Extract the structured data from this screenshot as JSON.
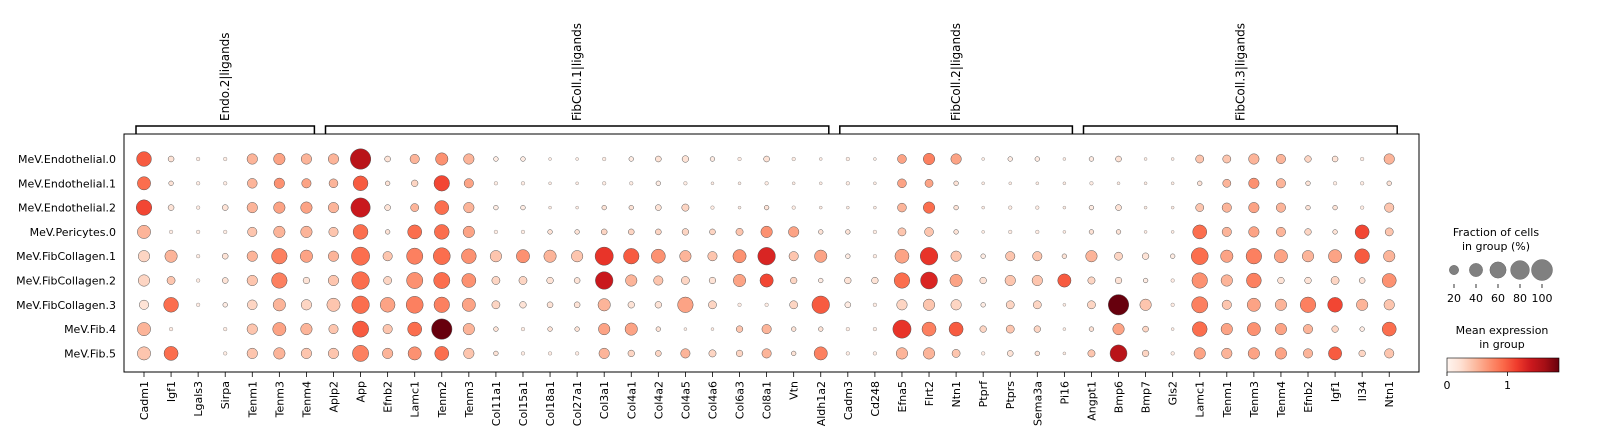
{
  "chart_data": {
    "type": "dotplot",
    "groups": [
      {
        "label": "Endo.2|ligands",
        "start": 0,
        "end": 6
      },
      {
        "label": "FibColl.1|ligands",
        "start": 7,
        "end": 25
      },
      {
        "label": "FibColl.2|ligands",
        "start": 26,
        "end": 34
      },
      {
        "label": "FibColl.3|ligands",
        "start": 35,
        "end": 46
      }
    ],
    "genes": [
      "Cadm1",
      "Igf1",
      "Lgals3",
      "Sirpa",
      "Tenm1",
      "Tenm3",
      "Tenm4",
      "Aplp2",
      "App",
      "Efnb2",
      "Lamc1",
      "Tenm2",
      "Tenm3",
      "Col11a1",
      "Col15a1",
      "Col18a1",
      "Col27a1",
      "Col3a1",
      "Col4a1",
      "Col4a2",
      "Col4a5",
      "Col4a6",
      "Col6a3",
      "Col8a1",
      "Vtn",
      "Aldh1a2",
      "Cadm3",
      "Cd248",
      "Efna5",
      "Flrt2",
      "Ntn1",
      "Ptprf",
      "Ptprs",
      "Sema3a",
      "Pi16",
      "Angpt1",
      "Bmp6",
      "Bmp7",
      "Gls2",
      "Lamc1",
      "Tenm1",
      "Tenm3",
      "Tenm4",
      "Efnb2",
      "Igf1",
      "Il34",
      "Ntn1"
    ],
    "rows": [
      "MeV.Endothelial.0",
      "MeV.Endothelial.1",
      "MeV.Endothelial.2",
      "MeV.Pericytes.0",
      "MeV.FibCollagen.1",
      "MeV.FibCollagen.2",
      "MeV.FibCollagen.3",
      "MeV.Fib.4",
      "MeV.Fib.5"
    ],
    "fraction_pct": [
      [
        50,
        8,
        3,
        3,
        25,
        30,
        25,
        25,
        95,
        8,
        20,
        35,
        25,
        5,
        5,
        2,
        2,
        3,
        5,
        8,
        10,
        5,
        3,
        8,
        3,
        2,
        3,
        2,
        18,
        30,
        25,
        2,
        5,
        5,
        2,
        5,
        8,
        2,
        2,
        15,
        15,
        25,
        20,
        10,
        8,
        3,
        25
      ],
      [
        40,
        5,
        3,
        3,
        22,
        25,
        20,
        18,
        50,
        5,
        10,
        55,
        20,
        3,
        3,
        2,
        2,
        3,
        3,
        5,
        3,
        2,
        2,
        3,
        2,
        2,
        3,
        2,
        18,
        15,
        5,
        2,
        2,
        2,
        2,
        3,
        2,
        2,
        2,
        5,
        15,
        25,
        20,
        5,
        3,
        3,
        5
      ],
      [
        55,
        8,
        3,
        8,
        25,
        30,
        30,
        25,
        85,
        8,
        15,
        45,
        25,
        5,
        5,
        2,
        2,
        5,
        5,
        8,
        12,
        3,
        2,
        5,
        3,
        2,
        2,
        2,
        18,
        30,
        5,
        2,
        3,
        3,
        2,
        5,
        8,
        2,
        2,
        15,
        20,
        25,
        20,
        5,
        5,
        3,
        20
      ],
      [
        40,
        3,
        3,
        3,
        20,
        30,
        30,
        20,
        50,
        5,
        45,
        50,
        30,
        3,
        3,
        5,
        5,
        8,
        8,
        8,
        10,
        8,
        12,
        30,
        25,
        5,
        5,
        3,
        15,
        18,
        5,
        2,
        3,
        3,
        2,
        5,
        5,
        2,
        2,
        45,
        20,
        25,
        20,
        10,
        5,
        45,
        15
      ],
      [
        30,
        35,
        3,
        8,
        25,
        55,
        35,
        25,
        75,
        20,
        60,
        65,
        50,
        30,
        40,
        35,
        30,
        75,
        55,
        45,
        30,
        20,
        40,
        70,
        20,
        35,
        5,
        3,
        45,
        70,
        25,
        5,
        20,
        20,
        5,
        30,
        15,
        10,
        5,
        65,
        35,
        55,
        40,
        30,
        40,
        50,
        30
      ],
      [
        30,
        15,
        3,
        8,
        25,
        55,
        10,
        25,
        70,
        15,
        60,
        60,
        45,
        15,
        15,
        10,
        8,
        70,
        30,
        20,
        15,
        10,
        35,
        40,
        10,
        5,
        10,
        10,
        55,
        65,
        35,
        10,
        25,
        25,
        40,
        12,
        10,
        5,
        3,
        55,
        30,
        50,
        10,
        10,
        15,
        8,
        45
      ],
      [
        20,
        50,
        3,
        5,
        22,
        35,
        25,
        40,
        70,
        50,
        65,
        55,
        40,
        15,
        10,
        8,
        8,
        35,
        10,
        10,
        55,
        15,
        3,
        3,
        15,
        70,
        8,
        3,
        25,
        30,
        25,
        5,
        15,
        15,
        2,
        15,
        95,
        30,
        3,
        60,
        20,
        40,
        30,
        55,
        50,
        30,
        25
      ],
      [
        40,
        3,
        0,
        3,
        25,
        40,
        30,
        20,
        60,
        20,
        45,
        95,
        30,
        5,
        3,
        5,
        5,
        30,
        35,
        5,
        2,
        2,
        10,
        20,
        5,
        5,
        3,
        3,
        75,
        45,
        45,
        10,
        15,
        10,
        2,
        5,
        30,
        8,
        2,
        50,
        30,
        40,
        30,
        20,
        10,
        5,
        45
      ],
      [
        40,
        45,
        0,
        3,
        25,
        30,
        25,
        25,
        60,
        25,
        40,
        45,
        25,
        5,
        3,
        3,
        3,
        25,
        10,
        8,
        20,
        12,
        10,
        20,
        5,
        40,
        3,
        3,
        30,
        30,
        15,
        3,
        8,
        5,
        2,
        12,
        65,
        10,
        3,
        30,
        25,
        30,
        30,
        20,
        40,
        10,
        20
      ]
    ],
    "mean_expression": [
      [
        1.0,
        0.2,
        0.1,
        0.1,
        0.5,
        0.6,
        0.5,
        0.5,
        1.5,
        0.2,
        0.5,
        0.7,
        0.5,
        0.1,
        0.1,
        0.1,
        0.1,
        0.1,
        0.1,
        0.2,
        0.2,
        0.1,
        0.1,
        0.2,
        0.1,
        0.1,
        0.1,
        0.1,
        0.6,
        0.8,
        0.6,
        0.1,
        0.1,
        0.1,
        0.1,
        0.1,
        0.2,
        0.1,
        0.1,
        0.4,
        0.4,
        0.5,
        0.5,
        0.3,
        0.2,
        0.1,
        0.5
      ],
      [
        0.9,
        0.2,
        0.1,
        0.1,
        0.5,
        0.7,
        0.6,
        0.5,
        1.0,
        0.2,
        0.3,
        1.1,
        0.6,
        0.1,
        0.1,
        0.1,
        0.1,
        0.1,
        0.1,
        0.1,
        0.1,
        0.1,
        0.1,
        0.1,
        0.1,
        0.1,
        0.1,
        0.1,
        0.6,
        0.6,
        0.2,
        0.1,
        0.1,
        0.1,
        0.1,
        0.1,
        0.1,
        0.1,
        0.1,
        0.2,
        0.5,
        0.7,
        0.5,
        0.2,
        0.1,
        0.1,
        0.2
      ],
      [
        1.1,
        0.2,
        0.1,
        0.2,
        0.5,
        0.6,
        0.6,
        0.5,
        1.4,
        0.2,
        0.5,
        0.9,
        0.5,
        0.1,
        0.1,
        0.1,
        0.1,
        0.2,
        0.2,
        0.2,
        0.3,
        0.1,
        0.1,
        0.2,
        0.1,
        0.1,
        0.1,
        0.1,
        0.5,
        0.9,
        0.2,
        0.1,
        0.1,
        0.1,
        0.1,
        0.1,
        0.2,
        0.1,
        0.1,
        0.4,
        0.5,
        0.6,
        0.5,
        0.2,
        0.2,
        0.1,
        0.4
      ],
      [
        0.5,
        0.1,
        0.1,
        0.1,
        0.4,
        0.5,
        0.5,
        0.4,
        0.9,
        0.2,
        0.9,
        0.9,
        0.6,
        0.1,
        0.1,
        0.2,
        0.2,
        0.3,
        0.3,
        0.3,
        0.3,
        0.3,
        0.4,
        0.7,
        0.6,
        0.2,
        0.2,
        0.1,
        0.4,
        0.4,
        0.2,
        0.1,
        0.1,
        0.1,
        0.1,
        0.2,
        0.2,
        0.1,
        0.1,
        0.9,
        0.5,
        0.6,
        0.5,
        0.3,
        0.2,
        1.1,
        0.4
      ],
      [
        0.3,
        0.5,
        0.1,
        0.2,
        0.5,
        0.8,
        0.6,
        0.5,
        0.9,
        0.4,
        0.8,
        0.9,
        0.7,
        0.4,
        0.7,
        0.5,
        0.4,
        1.2,
        1.0,
        0.7,
        0.5,
        0.4,
        0.7,
        1.3,
        0.4,
        0.6,
        0.1,
        0.1,
        0.6,
        1.2,
        0.4,
        0.1,
        0.4,
        0.4,
        0.2,
        0.5,
        0.3,
        0.2,
        0.1,
        0.9,
        0.6,
        0.8,
        0.6,
        0.5,
        0.6,
        1.0,
        0.5
      ],
      [
        0.3,
        0.4,
        0.1,
        0.2,
        0.4,
        0.8,
        0.2,
        0.4,
        0.9,
        0.3,
        0.7,
        0.9,
        0.7,
        0.3,
        0.3,
        0.2,
        0.2,
        1.4,
        0.5,
        0.4,
        0.3,
        0.2,
        0.6,
        1.1,
        0.3,
        0.1,
        0.2,
        0.2,
        0.9,
        1.3,
        0.6,
        0.2,
        0.4,
        0.4,
        1.0,
        0.3,
        0.2,
        0.1,
        0.1,
        0.7,
        0.5,
        0.8,
        0.2,
        0.2,
        0.3,
        0.2,
        0.7
      ],
      [
        0.2,
        0.9,
        0.1,
        0.1,
        0.3,
        0.5,
        0.3,
        0.4,
        0.9,
        0.6,
        0.8,
        0.8,
        0.6,
        0.3,
        0.2,
        0.2,
        0.2,
        0.5,
        0.2,
        0.2,
        0.6,
        0.3,
        0.1,
        0.1,
        0.3,
        1.0,
        0.1,
        0.1,
        0.3,
        0.4,
        0.3,
        0.1,
        0.3,
        0.3,
        0.1,
        0.3,
        2.0,
        0.4,
        0.1,
        0.8,
        0.4,
        0.6,
        0.5,
        0.8,
        1.1,
        0.5,
        0.4
      ],
      [
        0.5,
        0.1,
        0.0,
        0.1,
        0.4,
        0.6,
        0.5,
        0.4,
        1.0,
        0.4,
        0.9,
        2.6,
        0.5,
        0.2,
        0.1,
        0.2,
        0.2,
        0.6,
        0.6,
        0.2,
        0.1,
        0.1,
        0.4,
        0.5,
        0.2,
        0.2,
        0.1,
        0.1,
        1.2,
        0.8,
        1.0,
        0.3,
        0.4,
        0.3,
        0.1,
        0.2,
        0.6,
        0.3,
        0.1,
        0.9,
        0.6,
        0.7,
        0.6,
        0.5,
        0.3,
        0.1,
        0.9
      ],
      [
        0.4,
        0.9,
        0.0,
        0.1,
        0.4,
        0.5,
        0.4,
        0.4,
        0.8,
        0.5,
        0.7,
        0.9,
        0.4,
        0.2,
        0.1,
        0.1,
        0.1,
        0.5,
        0.3,
        0.3,
        0.5,
        0.3,
        0.3,
        0.5,
        0.2,
        0.8,
        0.1,
        0.1,
        0.5,
        0.5,
        0.4,
        0.1,
        0.2,
        0.2,
        0.1,
        0.4,
        1.5,
        0.3,
        0.1,
        0.6,
        0.5,
        0.6,
        0.6,
        0.5,
        1.0,
        0.3,
        0.4
      ]
    ],
    "color_scale": {
      "min": 0,
      "max": 1.85,
      "ticks": [
        0,
        1
      ],
      "colormap": "Reds"
    },
    "size_legend": {
      "title_line1": "Fraction of cells",
      "title_line2": "in group (%)",
      "ticks": [
        20,
        40,
        60,
        80,
        100
      ]
    },
    "color_legend": {
      "title_line1": "Mean expression",
      "title_line2": "in group"
    }
  }
}
